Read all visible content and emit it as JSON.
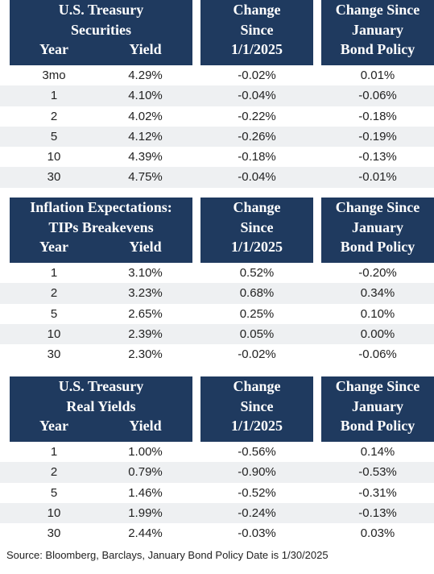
{
  "tables": [
    {
      "header": {
        "col1_line1": "U.S. Treasury",
        "col1_line2": "Securities",
        "year_label": "Year",
        "yield_label": "Yield",
        "change_line1": "Change",
        "change_line2": "Since",
        "change_line3": "1/1/2025",
        "policy_line1": "Change Since",
        "policy_line2": "January",
        "policy_line3": "Bond Policy"
      },
      "rows": [
        {
          "year": "3mo",
          "yield": "4.29%",
          "change": "-0.02%",
          "policy": "0.01%"
        },
        {
          "year": "1",
          "yield": "4.10%",
          "change": "-0.04%",
          "policy": "-0.06%"
        },
        {
          "year": "2",
          "yield": "4.02%",
          "change": "-0.22%",
          "policy": "-0.18%"
        },
        {
          "year": "5",
          "yield": "4.12%",
          "change": "-0.26%",
          "policy": "-0.19%"
        },
        {
          "year": "10",
          "yield": "4.39%",
          "change": "-0.18%",
          "policy": "-0.13%"
        },
        {
          "year": "30",
          "yield": "4.75%",
          "change": "-0.04%",
          "policy": "-0.01%"
        }
      ]
    },
    {
      "header": {
        "col1_line1": "Inflation Expectations:",
        "col1_line2": "TIPs Breakevens",
        "year_label": "Year",
        "yield_label": "Yield",
        "change_line1": "Change",
        "change_line2": "Since",
        "change_line3": "1/1/2025",
        "policy_line1": "Change Since",
        "policy_line2": "January",
        "policy_line3": "Bond Policy"
      },
      "rows": [
        {
          "year": "1",
          "yield": "3.10%",
          "change": "0.52%",
          "policy": "-0.20%"
        },
        {
          "year": "2",
          "yield": "3.23%",
          "change": "0.68%",
          "policy": "0.34%"
        },
        {
          "year": "5",
          "yield": "2.65%",
          "change": "0.25%",
          "policy": "0.10%"
        },
        {
          "year": "10",
          "yield": "2.39%",
          "change": "0.05%",
          "policy": "0.00%"
        },
        {
          "year": "30",
          "yield": "2.30%",
          "change": "-0.02%",
          "policy": "-0.06%"
        }
      ]
    },
    {
      "header": {
        "col1_line1": "U.S. Treasury",
        "col1_line2": "Real Yields",
        "year_label": "Year",
        "yield_label": "Yield",
        "change_line1": "Change",
        "change_line2": "Since",
        "change_line3": "1/1/2025",
        "policy_line1": "Change Since",
        "policy_line2": "January",
        "policy_line3": "Bond Policy"
      },
      "rows": [
        {
          "year": "1",
          "yield": "1.00%",
          "change": "-0.56%",
          "policy": "0.14%"
        },
        {
          "year": "2",
          "yield": "0.79%",
          "change": "-0.90%",
          "policy": "-0.53%"
        },
        {
          "year": "5",
          "yield": "1.46%",
          "change": "-0.52%",
          "policy": "-0.31%"
        },
        {
          "year": "10",
          "yield": "1.99%",
          "change": "-0.24%",
          "policy": "-0.13%"
        },
        {
          "year": "30",
          "yield": "2.44%",
          "change": "-0.03%",
          "policy": "0.03%"
        }
      ]
    }
  ],
  "source": "Source: Bloomberg, Barclays, January Bond Policy Date is 1/30/2025",
  "colors": {
    "header_bg": "#1f3a5f",
    "header_text": "#ffffff",
    "row_alt_bg": "#eef0f2"
  }
}
